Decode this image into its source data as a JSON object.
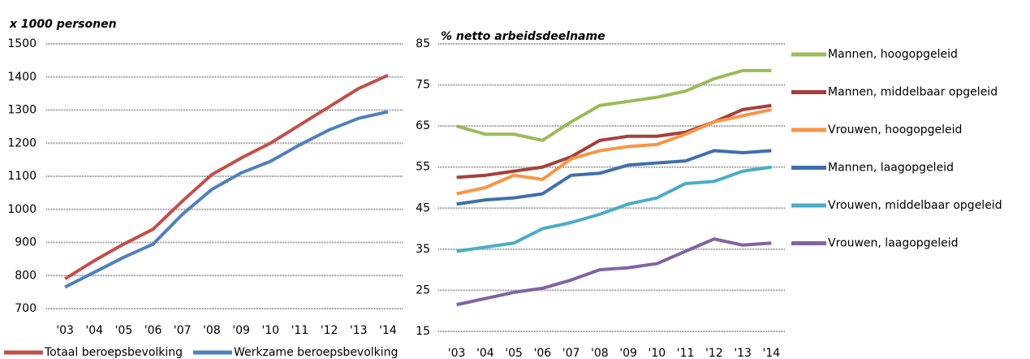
{
  "chart_data": [
    {
      "type": "line",
      "title": "x 1000 personen",
      "categories": [
        "'03",
        "'04",
        "'05",
        "'06",
        "'07",
        "'08",
        "'09",
        "'10",
        "'11",
        "'12",
        "'13",
        "'14"
      ],
      "series": [
        {
          "name": "Totaal beroepsbevolking",
          "color": "#c0504d",
          "values": [
            790,
            845,
            895,
            940,
            1025,
            1105,
            1155,
            1200,
            1255,
            1310,
            1365,
            1405
          ]
        },
        {
          "name": "Werkzame beroepsbevolking",
          "color": "#4f81bd",
          "values": [
            765,
            810,
            855,
            895,
            985,
            1060,
            1110,
            1145,
            1195,
            1240,
            1275,
            1295
          ]
        }
      ],
      "ylim": [
        700,
        1500
      ],
      "yticks": [
        700,
        800,
        900,
        1000,
        1100,
        1200,
        1300,
        1400,
        1500
      ],
      "grid": true,
      "legend": "bottom"
    },
    {
      "type": "line",
      "title": "% netto arbeidsdeelname",
      "categories": [
        "'03",
        "'04",
        "'05",
        "'06",
        "'07",
        "'08",
        "'09",
        "'10",
        "'11",
        "'12",
        "'13",
        "'14"
      ],
      "series": [
        {
          "name": "Mannen, hoogopgeleid",
          "color": "#9bbb59",
          "values": [
            65,
            63,
            63,
            61.5,
            66,
            70,
            71,
            72,
            73.5,
            76.5,
            78.5,
            78.5
          ]
        },
        {
          "name": "Mannen, middelbaar opgeleid",
          "color": "#a5403c",
          "values": [
            52.5,
            53,
            54,
            55,
            57.5,
            61.5,
            62.5,
            62.5,
            63.5,
            66,
            69,
            70
          ]
        },
        {
          "name": "Vrouwen, hoogopgeleid",
          "color": "#f79646",
          "values": [
            48.5,
            50,
            53,
            52,
            57,
            59,
            60,
            60.5,
            63,
            66,
            67.5,
            69
          ]
        },
        {
          "name": "Mannen, laagopgeleid",
          "color": "#3f6fae",
          "values": [
            46,
            47,
            47.5,
            48.5,
            53,
            53.5,
            55.5,
            56,
            56.5,
            59,
            58.5,
            59
          ]
        },
        {
          "name": "Vrouwen, middelbaar opgeleid",
          "color": "#4bacc6",
          "values": [
            34.5,
            35.5,
            36.5,
            40,
            41.5,
            43.5,
            46,
            47.5,
            51,
            51.5,
            54,
            55
          ]
        },
        {
          "name": "Vrouwen, laagopgeleid",
          "color": "#8064a2",
          "values": [
            21.5,
            23,
            24.5,
            25.5,
            27.5,
            30,
            30.5,
            31.5,
            34.5,
            37.5,
            36,
            36.5
          ]
        }
      ],
      "ylim": [
        15,
        85
      ],
      "yticks": [
        15,
        25,
        35,
        45,
        55,
        65,
        75,
        85
      ],
      "grid": true,
      "legend": "right"
    }
  ]
}
